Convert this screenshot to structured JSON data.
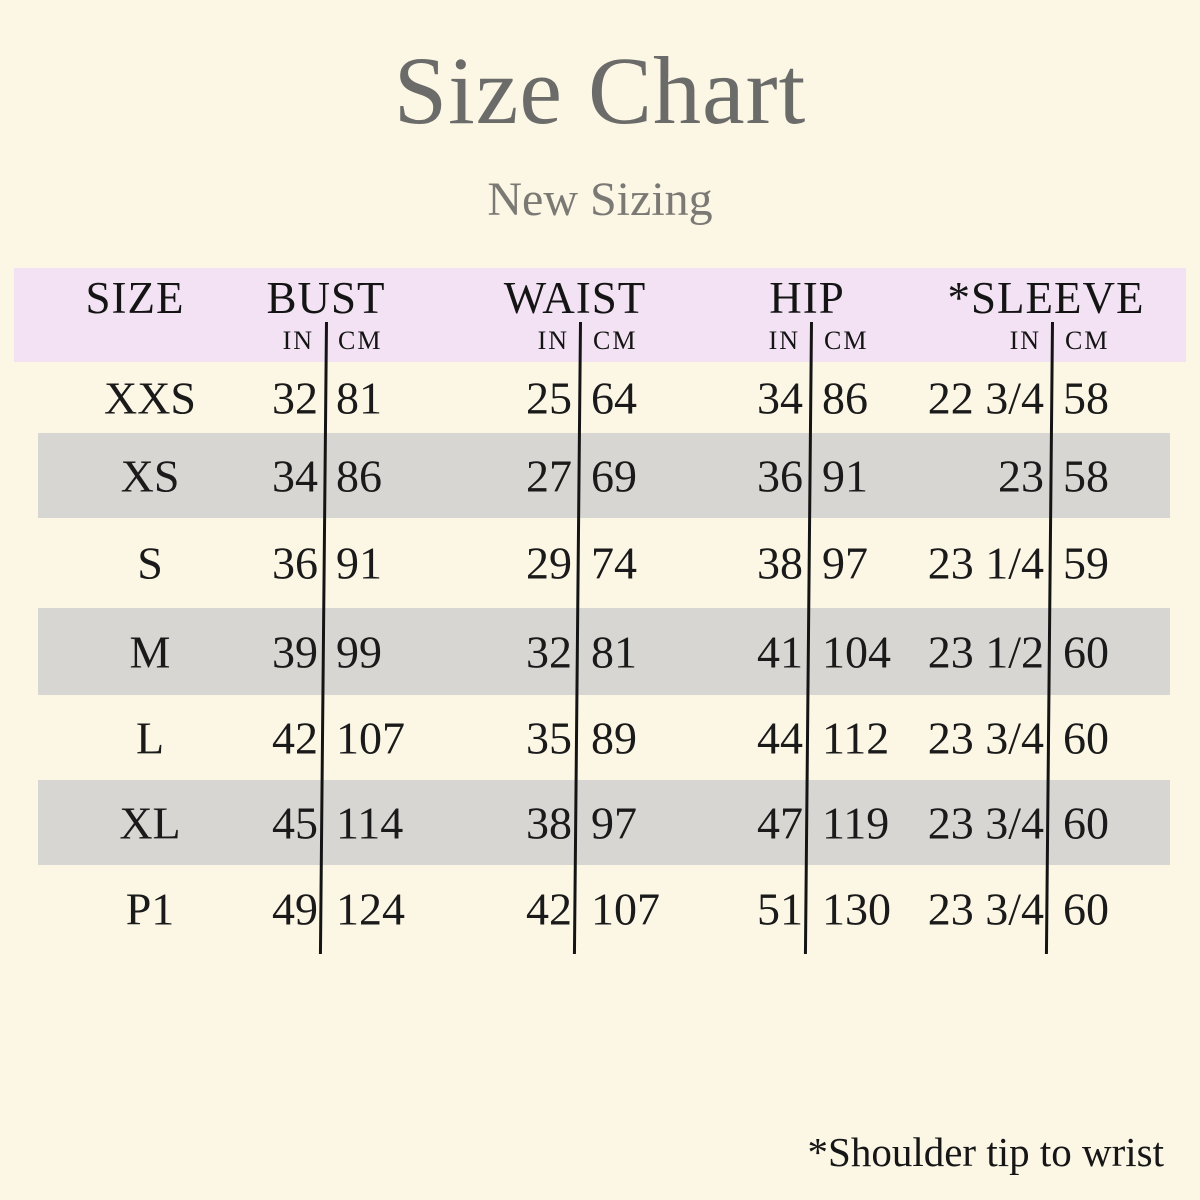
{
  "title": "Size Chart",
  "subtitle": "New Sizing",
  "footnote": "*Shoulder tip to wrist",
  "colors": {
    "background": "#FCF6E5",
    "header_band": "#F2E2F4",
    "row_stripe": "#D8D6D3",
    "title_text": "#6B6B69",
    "subtitle_text": "#7B7974",
    "table_text": "#1A1A1A",
    "divider_line": "#141414"
  },
  "table": {
    "size_header": "SIZE",
    "unit_in": "IN",
    "unit_cm": "CM",
    "groups": [
      {
        "label": "BUST"
      },
      {
        "label": "WAIST"
      },
      {
        "label": "HIP"
      },
      {
        "label": "*SLEEVE"
      }
    ],
    "rows": [
      {
        "size": "XXS",
        "bust_in": "32",
        "bust_cm": "81",
        "waist_in": "25",
        "waist_cm": "64",
        "hip_in": "34",
        "hip_cm": "86",
        "sleeve_in": "22 3/4",
        "sleeve_cm": "58"
      },
      {
        "size": "XS",
        "bust_in": "34",
        "bust_cm": "86",
        "waist_in": "27",
        "waist_cm": "69",
        "hip_in": "36",
        "hip_cm": "91",
        "sleeve_in": "23",
        "sleeve_cm": "58"
      },
      {
        "size": "S",
        "bust_in": "36",
        "bust_cm": "91",
        "waist_in": "29",
        "waist_cm": "74",
        "hip_in": "38",
        "hip_cm": "97",
        "sleeve_in": "23 1/4",
        "sleeve_cm": "59"
      },
      {
        "size": "M",
        "bust_in": "39",
        "bust_cm": "99",
        "waist_in": "32",
        "waist_cm": "81",
        "hip_in": "41",
        "hip_cm": "104",
        "sleeve_in": "23 1/2",
        "sleeve_cm": "60"
      },
      {
        "size": "L",
        "bust_in": "42",
        "bust_cm": "107",
        "waist_in": "35",
        "waist_cm": "89",
        "hip_in": "44",
        "hip_cm": "112",
        "sleeve_in": "23 3/4",
        "sleeve_cm": "60"
      },
      {
        "size": "XL",
        "bust_in": "45",
        "bust_cm": "114",
        "waist_in": "38",
        "waist_cm": "97",
        "hip_in": "47",
        "hip_cm": "119",
        "sleeve_in": "23 3/4",
        "sleeve_cm": "60"
      },
      {
        "size": "P1",
        "bust_in": "49",
        "bust_cm": "124",
        "waist_in": "42",
        "waist_cm": "107",
        "hip_in": "51",
        "hip_cm": "130",
        "sleeve_in": "23 3/4",
        "sleeve_cm": "60"
      }
    ]
  },
  "chart_data": {
    "type": "table",
    "title": "Size Chart",
    "subtitle": "New Sizing",
    "columns": [
      "SIZE",
      "BUST IN",
      "BUST CM",
      "WAIST IN",
      "WAIST CM",
      "HIP IN",
      "HIP CM",
      "*SLEEVE IN",
      "*SLEEVE CM"
    ],
    "rows": [
      [
        "XXS",
        "32",
        "81",
        "25",
        "64",
        "34",
        "86",
        "22 3/4",
        "58"
      ],
      [
        "XS",
        "34",
        "86",
        "27",
        "69",
        "36",
        "91",
        "23",
        "58"
      ],
      [
        "S",
        "36",
        "91",
        "29",
        "74",
        "38",
        "97",
        "23 1/4",
        "59"
      ],
      [
        "M",
        "39",
        "99",
        "32",
        "81",
        "41",
        "104",
        "23 1/2",
        "60"
      ],
      [
        "L",
        "42",
        "107",
        "35",
        "89",
        "44",
        "112",
        "23 3/4",
        "60"
      ],
      [
        "XL",
        "45",
        "114",
        "38",
        "97",
        "47",
        "119",
        "23 3/4",
        "60"
      ],
      [
        "P1",
        "49",
        "124",
        "42",
        "107",
        "51",
        "130",
        "23 3/4",
        "60"
      ]
    ],
    "footnote": "*Shoulder tip to wrist",
    "layout": "striped rows (XS, M, XL shaded gray); vertical rule between IN and CM of each measurement group"
  }
}
